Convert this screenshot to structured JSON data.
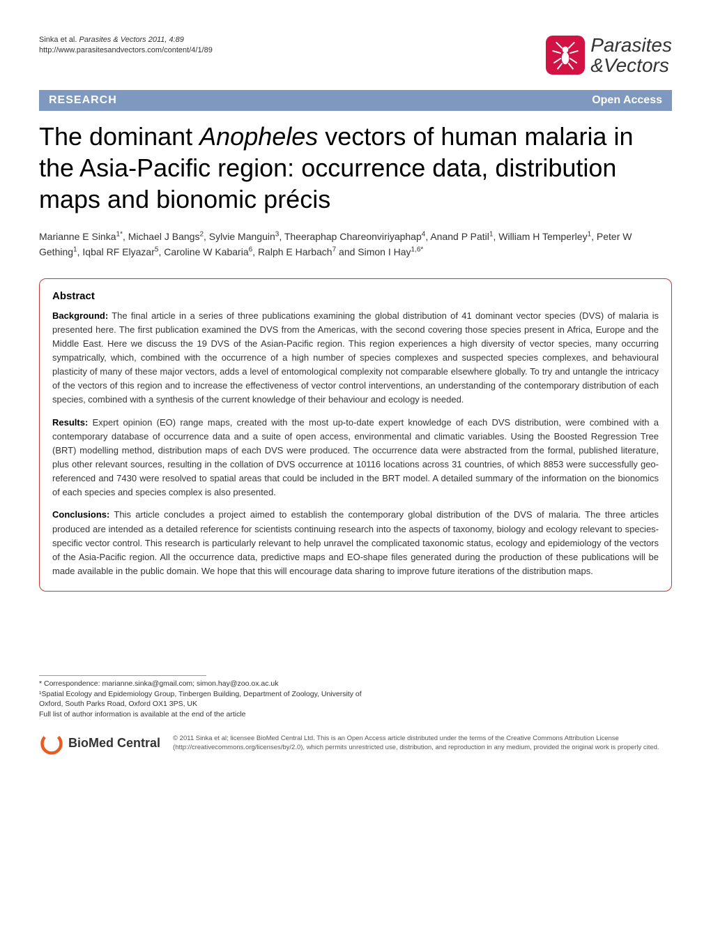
{
  "header": {
    "authors_short": "Sinka et al.",
    "citation": "Parasites & Vectors 2011, 4:89",
    "url": "http://www.parasitesandvectors.com/content/4/1/89",
    "journal_name_line1": "Parasites",
    "journal_name_line2": "&Vectors"
  },
  "banner": {
    "left": "RESEARCH",
    "right": "Open Access"
  },
  "title": {
    "pre": "The dominant ",
    "italic": "Anopheles",
    "post": " vectors of human malaria in the Asia-Pacific region: occurrence data, distribution maps and bionomic précis"
  },
  "authors_html": "Marianne E Sinka<sup>1*</sup>, Michael J Bangs<sup>2</sup>, Sylvie Manguin<sup>3</sup>, Theeraphap Chareonviriyaphap<sup>4</sup>, Anand P Patil<sup>1</sup>, William H Temperley<sup>1</sup>, Peter W Gething<sup>1</sup>, Iqbal RF Elyazar<sup>5</sup>, Caroline W Kabaria<sup>6</sup>, Ralph E Harbach<sup>7</sup> and Simon I Hay<sup>1,6*</sup>",
  "abstract": {
    "heading": "Abstract",
    "background_label": "Background:",
    "background": " The final article in a series of three publications examining the global distribution of 41 dominant vector species (DVS) of malaria is presented here. The first publication examined the DVS from the Americas, with the second covering those species present in Africa, Europe and the Middle East. Here we discuss the 19 DVS of the Asian-Pacific region. This region experiences a high diversity of vector species, many occurring sympatrically, which, combined with the occurrence of a high number of species complexes and suspected species complexes, and behavioural plasticity of many of these major vectors, adds a level of entomological complexity not comparable elsewhere globally. To try and untangle the intricacy of the vectors of this region and to increase the effectiveness of vector control interventions, an understanding of the contemporary distribution of each species, combined with a synthesis of the current knowledge of their behaviour and ecology is needed.",
    "results_label": "Results:",
    "results": " Expert opinion (EO) range maps, created with the most up-to-date expert knowledge of each DVS distribution, were combined with a contemporary database of occurrence data and a suite of open access, environmental and climatic variables. Using the Boosted Regression Tree (BRT) modelling method, distribution maps of each DVS were produced. The occurrence data were abstracted from the formal, published literature, plus other relevant sources, resulting in the collation of DVS occurrence at 10116 locations across 31 countries, of which 8853 were successfully geo-referenced and 7430 were resolved to spatial areas that could be included in the BRT model. A detailed summary of the information on the bionomics of each species and species complex is also presented.",
    "conclusions_label": "Conclusions:",
    "conclusions": " This article concludes a project aimed to establish the contemporary global distribution of the DVS of malaria. The three articles produced are intended as a detailed reference for scientists continuing research into the aspects of taxonomy, biology and ecology relevant to species-specific vector control. This research is particularly relevant to help unravel the complicated taxonomic status, ecology and epidemiology of the vectors of the Asia-Pacific region. All the occurrence data, predictive maps and EO-shape files generated during the production of these publications will be made available in the public domain. We hope that this will encourage data sharing to improve future iterations of the distribution maps."
  },
  "correspondence": {
    "line1": "* Correspondence: marianne.sinka@gmail.com; simon.hay@zoo.ox.ac.uk",
    "line2": "¹Spatial Ecology and Epidemiology Group, Tinbergen Building, Department of Zoology, University of Oxford, South Parks Road, Oxford OX1 3PS, UK",
    "line3": "Full list of author information is available at the end of the article"
  },
  "footer": {
    "bmc_name": "BioMed Central",
    "license": "© 2011 Sinka et al; licensee BioMed Central Ltd. This is an Open Access article distributed under the terms of the Creative Commons Attribution License (http://creativecommons.org/licenses/by/2.0), which permits unrestricted use, distribution, and reproduction in any medium, provided the original work is properly cited."
  },
  "colors": {
    "banner_bg": "#7e98c0",
    "abstract_border": "#c33",
    "logo_bg": "#d11242"
  }
}
